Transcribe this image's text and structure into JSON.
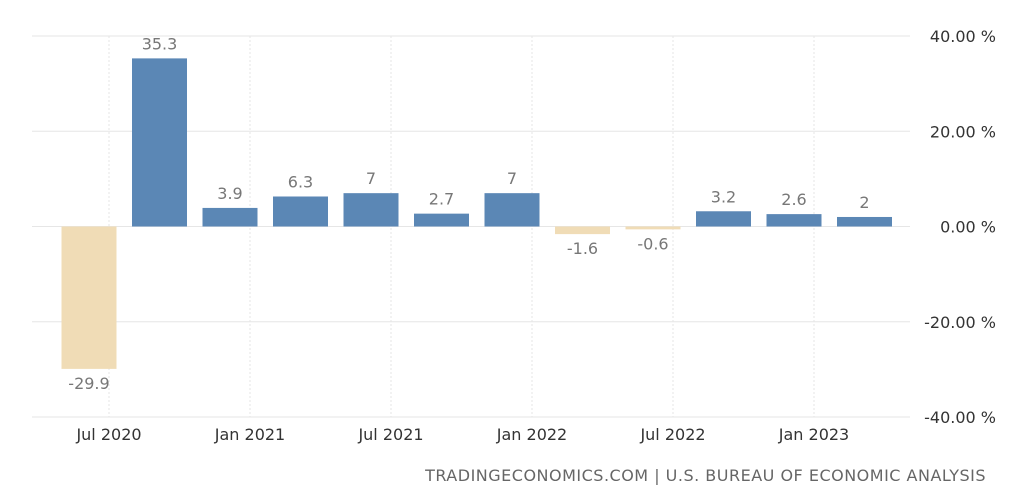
{
  "chart_data": {
    "type": "bar",
    "categories": [
      "Jul 2020",
      "Oct 2020",
      "Jan 2021",
      "Apr 2021",
      "Jul 2021",
      "Oct 2021",
      "Jan 2022",
      "Apr 2022",
      "Jul 2022",
      "Oct 2022",
      "Jan 2023",
      "Apr 2023"
    ],
    "values": [
      -29.9,
      35.3,
      3.9,
      6.3,
      7,
      2.7,
      7,
      -1.6,
      -0.6,
      3.2,
      2.6,
      2
    ],
    "value_labels": [
      "-29.9",
      "35.3",
      "3.9",
      "6.3",
      "7",
      "2.7",
      "7",
      "-1.6",
      "-0.6",
      "3.2",
      "2.6",
      "2"
    ],
    "x_tick_labels": [
      {
        "label": "Jul 2020",
        "index": 0
      },
      {
        "label": "Jan 2021",
        "index": 2
      },
      {
        "label": "Jul 2021",
        "index": 4
      },
      {
        "label": "Jan 2022",
        "index": 6
      },
      {
        "label": "Jul 2022",
        "index": 8
      },
      {
        "label": "Jan 2023",
        "index": 10
      }
    ],
    "y_ticks": [
      40,
      20,
      0,
      -20,
      -40
    ],
    "y_tick_labels": [
      "40.00 %",
      "20.00 %",
      "0.00 %",
      "-20.00 %",
      "-40.00 %"
    ],
    "ylim": [
      -40,
      40
    ],
    "y_axis_position": "right",
    "grid": true,
    "colors": {
      "positive": "#5b87b5",
      "negative": "#f0dcb6"
    }
  },
  "source": "TRADINGECONOMICS.COM | U.S. BUREAU OF ECONOMIC ANALYSIS"
}
